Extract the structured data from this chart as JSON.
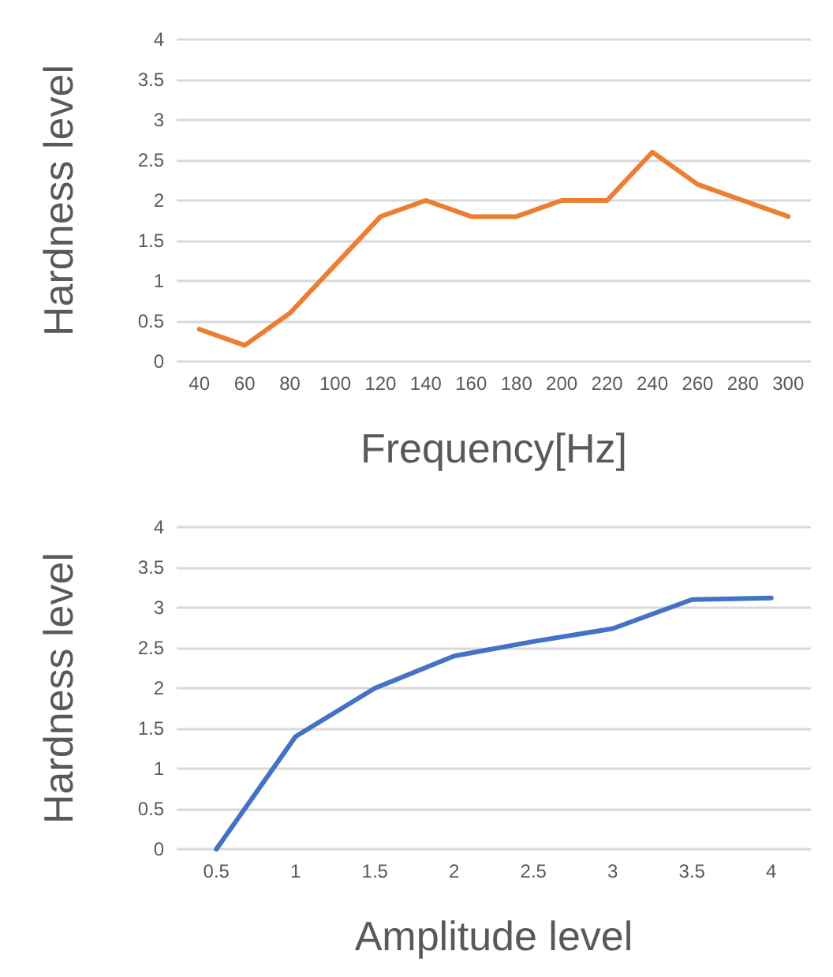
{
  "chart_data": [
    {
      "type": "line",
      "xlabel": "Frequency[Hz]",
      "ylabel": "Hardness level",
      "categories": [
        "40",
        "60",
        "80",
        "100",
        "120",
        "140",
        "160",
        "180",
        "200",
        "220",
        "240",
        "260",
        "280",
        "300"
      ],
      "series": [
        {
          "color": "#ed7d31",
          "values": [
            0.4,
            0.2,
            0.6,
            1.2,
            1.8,
            2.0,
            1.8,
            1.8,
            2.0,
            2.0,
            2.6,
            2.2,
            2.0,
            1.8
          ]
        }
      ],
      "ylim": [
        0,
        4
      ],
      "yticks": [
        0,
        0.5,
        1,
        1.5,
        2,
        2.5,
        3,
        3.5,
        4
      ],
      "grid": "y",
      "marker": "none",
      "line_style": "solid"
    },
    {
      "type": "line",
      "xlabel": "Amplitude level",
      "ylabel": "Hardness level",
      "categories": [
        "0.5",
        "1",
        "1.5",
        "2",
        "2.5",
        "3",
        "3.5",
        "4"
      ],
      "series": [
        {
          "color": "#4472c4",
          "values": [
            0,
            1.4,
            2.0,
            2.4,
            2.58,
            2.74,
            3.1,
            3.12
          ]
        }
      ],
      "ylim": [
        0,
        4
      ],
      "yticks": [
        0,
        0.5,
        1,
        1.5,
        2,
        2.5,
        3,
        3.5,
        4
      ],
      "grid": "y",
      "marker": "none",
      "line_style": "solid"
    }
  ]
}
